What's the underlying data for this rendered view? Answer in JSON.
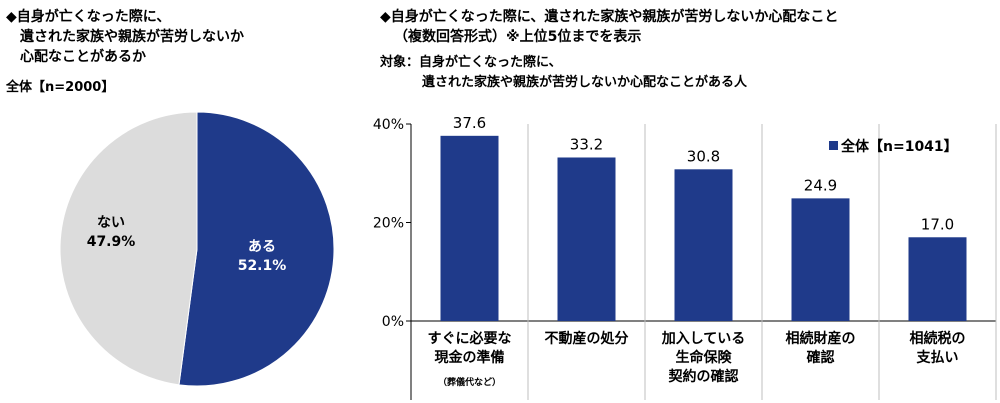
{
  "left": {
    "title_lines": [
      "◆自身が亡くなった際に、",
      "遺された家族や親族が苦労しないか",
      "心配なことがあるか"
    ],
    "base": "全体【n=2000】"
  },
  "right": {
    "title_lines": [
      "◆自身が亡くなった際に、遺された家族や親族が苦労しないか心配なこと",
      "（複数回答形式）※上位5位までを表示"
    ],
    "target_lines": [
      "対象：自身が亡くなった際に、",
      "遺された家族や親族が苦労しないか心配なことがある人"
    ]
  },
  "colors": {
    "primary": "#1f3a8a",
    "secondary": "#dcdcdc",
    "grid": "#bfbfbf"
  },
  "chart_data": [
    {
      "type": "pie",
      "slices": [
        {
          "name": "ある",
          "value": 52.1,
          "label": "52.1%",
          "color": "#1f3a8a"
        },
        {
          "name": "ない",
          "value": 47.9,
          "label": "47.9%",
          "color": "#dcdcdc"
        }
      ]
    },
    {
      "type": "bar",
      "categories": [
        [
          "すぐに必要な",
          "現金の準備",
          "（葬儀代など）"
        ],
        [
          "不動産の処分"
        ],
        [
          "加入している",
          "生命保険",
          "契約の確認"
        ],
        [
          "相続財産の",
          "確認"
        ],
        [
          "相続税の",
          "支払い"
        ]
      ],
      "series": [
        {
          "name": "全体【n=1041】",
          "values": [
            37.6,
            33.2,
            30.8,
            24.9,
            17.0
          ],
          "labels": [
            "37.6",
            "33.2",
            "30.8",
            "24.9",
            "17.0"
          ]
        }
      ],
      "yticks": [
        "0%",
        "20%",
        "40%"
      ],
      "ylim": [
        0,
        40
      ],
      "legend": "top-right",
      "grid": false
    }
  ]
}
